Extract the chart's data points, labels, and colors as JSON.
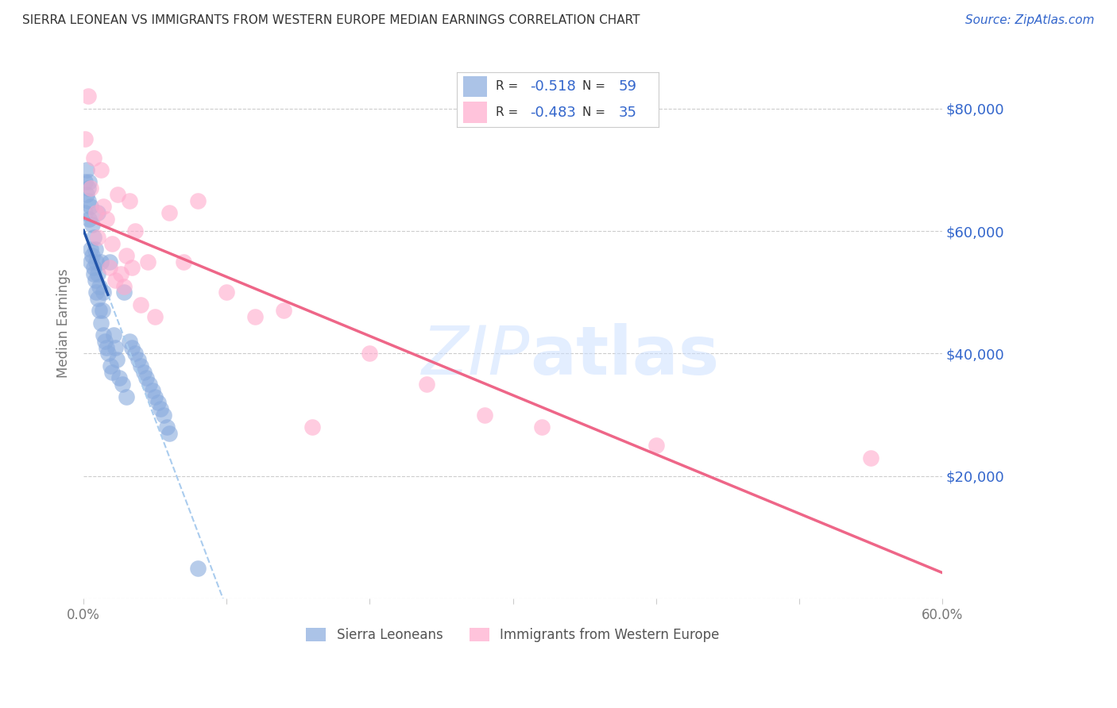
{
  "title": "SIERRA LEONEAN VS IMMIGRANTS FROM WESTERN EUROPE MEDIAN EARNINGS CORRELATION CHART",
  "source_text": "Source: ZipAtlas.com",
  "ylabel": "Median Earnings",
  "xlim": [
    0,
    0.6
  ],
  "ylim": [
    0,
    90000
  ],
  "yticks": [
    0,
    20000,
    40000,
    60000,
    80000
  ],
  "ytick_labels": [
    "",
    "$20,000",
    "$40,000",
    "$60,000",
    "$80,000"
  ],
  "xtick_vals": [
    0.0,
    0.1,
    0.2,
    0.3,
    0.4,
    0.5,
    0.6
  ],
  "xtick_labels": [
    "0.0%",
    "",
    "",
    "",
    "",
    "",
    "60.0%"
  ],
  "background_color": "#ffffff",
  "blue_color": "#88aadd",
  "pink_color": "#ffaacc",
  "blue_line_color": "#2255aa",
  "blue_dashed_color": "#aaccee",
  "pink_line_color": "#ee6688",
  "legend_text_color": "#3366cc",
  "legend_label_color": "#333333",
  "watermark_color": "#cce0ff",
  "title_color": "#333333",
  "source_color": "#3366cc",
  "ylabel_color": "#777777",
  "ytick_color": "#3366cc",
  "xtick_color": "#777777",
  "legend_R1_val": "-0.518",
  "legend_N1_val": "59",
  "legend_R2_val": "-0.483",
  "legend_N2_val": "35",
  "blue_x": [
    0.001,
    0.001,
    0.002,
    0.002,
    0.003,
    0.003,
    0.004,
    0.004,
    0.005,
    0.005,
    0.005,
    0.006,
    0.006,
    0.007,
    0.007,
    0.007,
    0.008,
    0.008,
    0.009,
    0.009,
    0.01,
    0.01,
    0.01,
    0.011,
    0.011,
    0.012,
    0.012,
    0.013,
    0.014,
    0.014,
    0.015,
    0.016,
    0.017,
    0.018,
    0.019,
    0.02,
    0.021,
    0.022,
    0.023,
    0.025,
    0.027,
    0.028,
    0.03,
    0.032,
    0.034,
    0.036,
    0.038,
    0.04,
    0.042,
    0.044,
    0.046,
    0.048,
    0.05,
    0.052,
    0.054,
    0.056,
    0.058,
    0.06,
    0.08
  ],
  "blue_y": [
    68000,
    63000,
    70000,
    66000,
    67000,
    65000,
    68000,
    62000,
    64000,
    57000,
    55000,
    61000,
    56000,
    59000,
    54000,
    53000,
    57000,
    52000,
    55000,
    50000,
    63000,
    53000,
    49000,
    51000,
    47000,
    55000,
    45000,
    47000,
    50000,
    43000,
    42000,
    41000,
    40000,
    55000,
    38000,
    37000,
    43000,
    41000,
    39000,
    36000,
    35000,
    50000,
    33000,
    42000,
    41000,
    40000,
    39000,
    38000,
    37000,
    36000,
    35000,
    34000,
    33000,
    32000,
    31000,
    30000,
    28000,
    27000,
    5000
  ],
  "pink_x": [
    0.001,
    0.003,
    0.005,
    0.007,
    0.009,
    0.01,
    0.012,
    0.014,
    0.016,
    0.018,
    0.02,
    0.022,
    0.024,
    0.026,
    0.028,
    0.03,
    0.032,
    0.034,
    0.036,
    0.04,
    0.045,
    0.05,
    0.06,
    0.07,
    0.08,
    0.1,
    0.12,
    0.14,
    0.16,
    0.2,
    0.24,
    0.28,
    0.32,
    0.4,
    0.55
  ],
  "pink_y": [
    75000,
    82000,
    67000,
    72000,
    63000,
    59000,
    70000,
    64000,
    62000,
    54000,
    58000,
    52000,
    66000,
    53000,
    51000,
    56000,
    65000,
    54000,
    60000,
    48000,
    55000,
    46000,
    63000,
    55000,
    65000,
    50000,
    46000,
    47000,
    28000,
    40000,
    35000,
    30000,
    28000,
    25000,
    23000
  ]
}
